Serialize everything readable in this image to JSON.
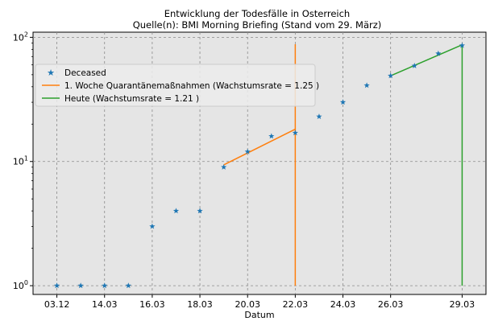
{
  "chart_data": {
    "type": "line",
    "title": "Entwicklung der Todesfälle in Osterreich",
    "subtitle": "Quelle(n): BMI Morning Briefing  (Stand vom 29. März)",
    "xlabel": "Datum",
    "ylabel": "",
    "yscale": "log",
    "ylim": [
      0.85,
      110
    ],
    "xlim": [
      -1,
      18
    ],
    "grid": true,
    "legend_position": "upper-left",
    "x_ticks": [
      {
        "pos": 0,
        "label": "03.12"
      },
      {
        "pos": 2,
        "label": "14.03"
      },
      {
        "pos": 4,
        "label": "16.03"
      },
      {
        "pos": 6,
        "label": "18.03"
      },
      {
        "pos": 8,
        "label": "20.03"
      },
      {
        "pos": 10,
        "label": "22.03"
      },
      {
        "pos": 12,
        "label": "24.03"
      },
      {
        "pos": 14,
        "label": "26.03"
      },
      {
        "pos": 17,
        "label": "29.03"
      }
    ],
    "y_ticks": [
      {
        "value": 1,
        "base": "10",
        "exp": "0"
      },
      {
        "value": 10,
        "base": "10",
        "exp": "1"
      },
      {
        "value": 100,
        "base": "10",
        "exp": "2"
      }
    ],
    "series": [
      {
        "name": "Deceased",
        "kind": "points",
        "color": "#1f77b4",
        "x": [
          0,
          1,
          2,
          3,
          4,
          5,
          6,
          7,
          8,
          9,
          10,
          11,
          12,
          13,
          14,
          15,
          16,
          17
        ],
        "y": [
          1,
          1,
          1,
          1,
          3,
          4,
          4,
          9,
          12,
          16,
          17,
          23,
          30,
          41,
          49,
          59,
          74,
          86
        ]
      },
      {
        "name": "1. Woche Quarantänemaßnahmen (Wachstumsrate = 1.25 )",
        "kind": "line",
        "color": "#ff7f0e",
        "x": [
          7,
          10
        ],
        "y": [
          9.4,
          18.2
        ],
        "vline": {
          "x": 10,
          "y_from": 1,
          "y_to": 88
        }
      },
      {
        "name": "Heute (Wachstumsrate = 1.21 )",
        "kind": "line",
        "color": "#2ca02c",
        "x": [
          14,
          17
        ],
        "y": [
          49,
          87
        ],
        "vline": {
          "x": 17,
          "y_from": 1,
          "y_to": 87
        }
      }
    ]
  }
}
